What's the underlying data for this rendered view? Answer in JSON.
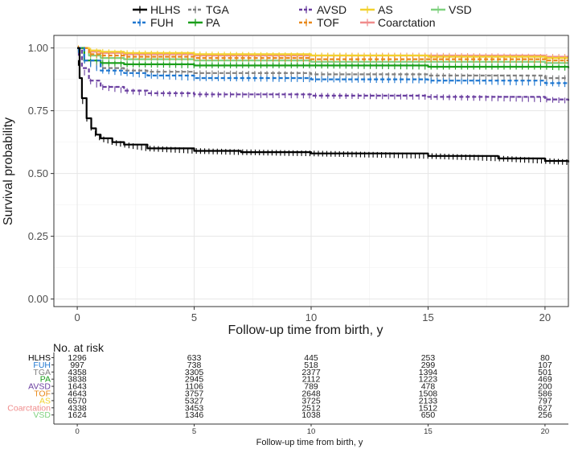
{
  "chart_data": [
    {
      "type": "line",
      "subtype": "kaplan-meier",
      "title": "",
      "xlabel": "Follow-up time from birth, y",
      "ylabel": "Survival probability",
      "xlim": [
        -1,
        21
      ],
      "ylim": [
        -0.03,
        1.05
      ],
      "x_ticks": [
        0,
        5,
        10,
        15,
        20
      ],
      "y_ticks": [
        0.0,
        0.25,
        0.5,
        0.75,
        1.0
      ],
      "x_tick_labels": [
        "0",
        "5",
        "10",
        "15",
        "20"
      ],
      "y_tick_labels": [
        "0.00",
        "0.25",
        "0.50",
        "0.75",
        "1.00"
      ],
      "grid": true,
      "legend_position": "top",
      "series": [
        {
          "name": "HLHS",
          "color": "#000000",
          "line": "solid",
          "x": [
            0,
            0.1,
            0.2,
            0.4,
            0.6,
            0.8,
            1,
            1.5,
            2,
            3,
            5,
            7,
            10,
            15,
            18,
            20,
            21
          ],
          "y": [
            1.0,
            0.88,
            0.8,
            0.72,
            0.68,
            0.655,
            0.64,
            0.625,
            0.615,
            0.6,
            0.59,
            0.585,
            0.58,
            0.57,
            0.56,
            0.55,
            0.545
          ]
        },
        {
          "name": "FUH",
          "color": "#1f77d0",
          "line": "dashed",
          "x": [
            0,
            0.3,
            1,
            2,
            3,
            5,
            10,
            15,
            20,
            21
          ],
          "y": [
            1.0,
            0.95,
            0.91,
            0.9,
            0.89,
            0.88,
            0.875,
            0.87,
            0.86,
            0.855
          ]
        },
        {
          "name": "TGA",
          "color": "#808080",
          "line": "dashed",
          "x": [
            0,
            0.3,
            1,
            2,
            3,
            5,
            10,
            15,
            20,
            21
          ],
          "y": [
            1.0,
            0.95,
            0.92,
            0.91,
            0.905,
            0.9,
            0.895,
            0.89,
            0.88,
            0.88
          ]
        },
        {
          "name": "PA",
          "color": "#1a9e1a",
          "line": "solid",
          "x": [
            0,
            0.3,
            1,
            2,
            5,
            10,
            15,
            20,
            21
          ],
          "y": [
            1.0,
            0.95,
            0.94,
            0.935,
            0.93,
            0.93,
            0.925,
            0.925,
            0.92
          ]
        },
        {
          "name": "AVSD",
          "color": "#6a3fa0",
          "line": "dashed",
          "x": [
            0,
            0.2,
            0.5,
            1,
            2,
            3,
            5,
            10,
            15,
            20,
            21
          ],
          "y": [
            1.0,
            0.92,
            0.87,
            0.845,
            0.83,
            0.82,
            0.815,
            0.81,
            0.805,
            0.795,
            0.79
          ]
        },
        {
          "name": "TOF",
          "color": "#e8881a",
          "line": "dashed",
          "x": [
            0,
            0.5,
            1,
            2,
            5,
            10,
            15,
            20,
            21
          ],
          "y": [
            1.0,
            0.975,
            0.97,
            0.965,
            0.96,
            0.955,
            0.955,
            0.95,
            0.95
          ]
        },
        {
          "name": "AS",
          "color": "#f2d12e",
          "line": "solid",
          "x": [
            0,
            0.5,
            1,
            2,
            5,
            10,
            15,
            20,
            21
          ],
          "y": [
            1.0,
            0.99,
            0.985,
            0.98,
            0.975,
            0.97,
            0.965,
            0.96,
            0.96
          ]
        },
        {
          "name": "Coarctation",
          "color": "#f08c8c",
          "line": "solid",
          "x": [
            0,
            0.5,
            1,
            2,
            5,
            10,
            15,
            20,
            21
          ],
          "y": [
            1.0,
            0.985,
            0.98,
            0.975,
            0.97,
            0.97,
            0.97,
            0.965,
            0.965
          ]
        },
        {
          "name": "VSD",
          "color": "#7fd17f",
          "line": "solid",
          "x": [
            0,
            0.5,
            1,
            2,
            5,
            10,
            15,
            20,
            21
          ],
          "y": [
            1.0,
            0.97,
            0.96,
            0.955,
            0.95,
            0.945,
            0.945,
            0.94,
            0.94
          ]
        }
      ]
    },
    {
      "type": "table",
      "title": "No. at risk",
      "xlabel": "Follow-up time from birth, y",
      "x_ticks": [
        0,
        5,
        10,
        15,
        20
      ],
      "x_tick_labels": [
        "0",
        "5",
        "10",
        "15",
        "20"
      ],
      "time_points": [
        0,
        5,
        10,
        15,
        20
      ],
      "rows": [
        {
          "name": "HLHS",
          "color": "#000000",
          "values": [
            "1296",
            "633",
            "445",
            "253",
            "80"
          ]
        },
        {
          "name": "FUH",
          "color": "#1f77d0",
          "values": [
            "997",
            "738",
            "518",
            "299",
            "107"
          ]
        },
        {
          "name": "TGA",
          "color": "#808080",
          "values": [
            "4358",
            "3305",
            "2377",
            "1394",
            "501"
          ]
        },
        {
          "name": "PA",
          "color": "#1a9e1a",
          "values": [
            "3838",
            "2945",
            "2112",
            "1223",
            "469"
          ]
        },
        {
          "name": "AVSD",
          "color": "#6a3fa0",
          "values": [
            "1643",
            "1106",
            "789",
            "478",
            "200"
          ]
        },
        {
          "name": "TOF",
          "color": "#e8881a",
          "values": [
            "4643",
            "3757",
            "2648",
            "1508",
            "586"
          ]
        },
        {
          "name": "AS",
          "color": "#f2d12e",
          "values": [
            "6570",
            "5327",
            "3725",
            "2133",
            "797"
          ]
        },
        {
          "name": "Coarctation",
          "color": "#f08c8c",
          "values": [
            "4338",
            "3453",
            "2512",
            "1512",
            "627"
          ]
        },
        {
          "name": "VSD",
          "color": "#7fd17f",
          "values": [
            "1624",
            "1346",
            "1038",
            "650",
            "256"
          ]
        }
      ]
    }
  ]
}
